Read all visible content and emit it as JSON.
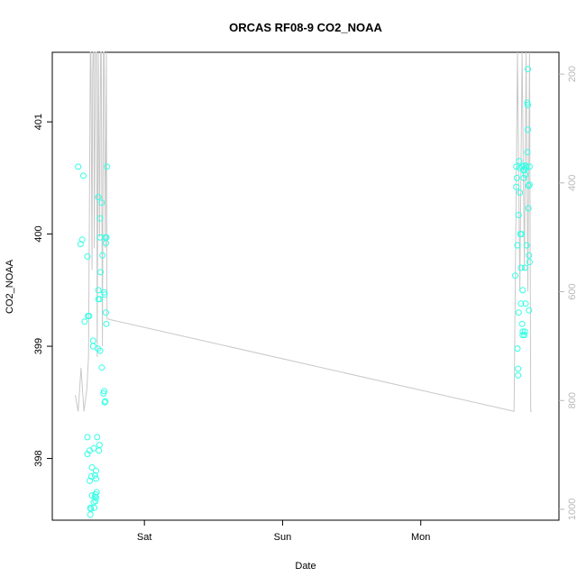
{
  "chart_data": {
    "type": "scatter",
    "title": "ORCAS RF08-9 CO2_NOAA",
    "xlabel": "Date",
    "ylabel": "CO2_NOAA",
    "x_ticks": [
      "Sat",
      "Sun",
      "Mon"
    ],
    "y_ticks": [
      398,
      399,
      400,
      401
    ],
    "y2_ticks": [
      200,
      400,
      600,
      800,
      1000
    ],
    "xlim_hours": [
      -16.0,
      72.0
    ],
    "ylim": [
      397.45,
      401.62
    ],
    "y2lim_reversed": [
      160,
      1020
    ],
    "grid": false,
    "colors": {
      "points": "#33ffe6",
      "line": "#c8c8c8",
      "right_axis": "#b8b8b8"
    },
    "series": [
      {
        "points": [
          [
            -11.5,
            400.6
          ],
          [
            -11.1,
            399.91
          ],
          [
            -10.8,
            399.95
          ],
          [
            -10.6,
            400.52
          ],
          [
            -10.4,
            399.22
          ],
          [
            -9.9,
            399.8
          ],
          [
            -9.8,
            399.27
          ],
          [
            -9.6,
            399.27
          ],
          [
            -9.9,
            398.04
          ],
          [
            -9.9,
            398.19
          ],
          [
            -9.5,
            398.07
          ],
          [
            -9.5,
            397.8
          ],
          [
            -9.4,
            397.56
          ],
          [
            -9.4,
            397.5
          ],
          [
            -9.3,
            397.55
          ],
          [
            -9.2,
            397.84
          ],
          [
            -9.1,
            397.67
          ],
          [
            -9.1,
            397.92
          ],
          [
            -8.9,
            399.05
          ],
          [
            -8.9,
            399.0
          ],
          [
            -8.8,
            398.09
          ],
          [
            -8.8,
            397.61
          ],
          [
            -8.7,
            397.56
          ],
          [
            -8.6,
            397.85
          ],
          [
            -8.6,
            397.66
          ],
          [
            -8.5,
            397.68
          ],
          [
            -8.5,
            397.62
          ],
          [
            -8.4,
            397.65
          ],
          [
            -8.4,
            397.89
          ],
          [
            -8.4,
            397.82
          ],
          [
            -8.3,
            397.7
          ],
          [
            -8.2,
            398.19
          ],
          [
            -8.0,
            400.33
          ],
          [
            -8.0,
            399.5
          ],
          [
            -7.9,
            398.07
          ],
          [
            -7.8,
            398.12
          ],
          [
            -7.7,
            400.14
          ],
          [
            -7.7,
            399.97
          ],
          [
            -7.6,
            399.66
          ],
          [
            -7.4,
            400.28
          ],
          [
            -7.3,
            399.81
          ],
          [
            -7.1,
            398.58
          ],
          [
            -7.0,
            398.6
          ],
          [
            -7.0,
            399.48
          ],
          [
            -6.9,
            399.46
          ],
          [
            -6.9,
            398.5
          ],
          [
            -6.8,
            398.51
          ],
          [
            -6.8,
            399.97
          ],
          [
            -6.7,
            399.92
          ],
          [
            -6.7,
            399.3
          ],
          [
            -6.6,
            399.2
          ],
          [
            -6.6,
            399.97
          ],
          [
            -6.5,
            400.6
          ]
        ]
      },
      {
        "points": [
          [
            -8.1,
            398.98
          ],
          [
            -8.0,
            399.42
          ],
          [
            -7.8,
            399.42
          ],
          [
            -7.7,
            398.96
          ],
          [
            -7.4,
            398.81
          ]
        ]
      },
      {
        "points": [
          [
            64.4,
            399.63
          ],
          [
            64.6,
            400.6
          ],
          [
            64.6,
            400.42
          ],
          [
            64.7,
            400.5
          ],
          [
            64.8,
            399.9
          ],
          [
            64.8,
            398.98
          ],
          [
            64.9,
            398.8
          ],
          [
            64.9,
            398.74
          ],
          [
            65.0,
            399.3
          ],
          [
            65.0,
            400.17
          ],
          [
            65.1,
            400.65
          ],
          [
            65.2,
            400.59
          ],
          [
            65.2,
            400.37
          ],
          [
            65.3,
            400.0
          ],
          [
            65.4,
            399.7
          ],
          [
            65.4,
            399.38
          ],
          [
            65.5,
            400.0
          ],
          [
            65.6,
            400.6
          ],
          [
            65.6,
            399.2
          ],
          [
            65.7,
            399.13
          ],
          [
            65.7,
            399.5
          ],
          [
            65.7,
            399.1
          ],
          [
            65.8,
            400.57
          ],
          [
            65.9,
            400.61
          ],
          [
            65.9,
            400.5
          ],
          [
            66.0,
            400.57
          ],
          [
            66.0,
            399.1
          ],
          [
            66.1,
            399.13
          ],
          [
            66.1,
            399.7
          ],
          [
            66.2,
            399.38
          ],
          [
            66.2,
            400.53
          ],
          [
            66.3,
            400.59
          ],
          [
            66.3,
            400.61
          ],
          [
            66.4,
            399.9
          ],
          [
            66.5,
            400.73
          ],
          [
            66.5,
            401.17
          ],
          [
            66.6,
            400.93
          ],
          [
            66.6,
            401.15
          ],
          [
            66.7,
            400.23
          ],
          [
            66.7,
            400.43
          ],
          [
            66.8,
            399.32
          ],
          [
            66.8,
            399.81
          ],
          [
            66.9,
            399.75
          ],
          [
            66.9,
            400.44
          ],
          [
            66.9,
            400.6
          ],
          [
            66.6,
            401.47
          ]
        ]
      }
    ],
    "secondary_line": {
      "x": [
        -12.0,
        -11.5,
        -11.0,
        -10.5,
        -10.0,
        -9.7,
        -9.4,
        -9.3,
        -9.1,
        -9.0,
        -8.9,
        -8.8,
        -8.7,
        -8.5,
        -8.3,
        -8.2,
        -8.0,
        -7.8,
        -7.6,
        -7.5,
        -7.3,
        -7.1,
        -7.0,
        -6.8,
        -6.6,
        -6.5,
        64.2,
        64.8,
        65.2,
        65.6,
        66.0,
        66.3,
        66.6,
        66.9,
        67.1,
        67.3
      ],
      "y": [
        790,
        820,
        740,
        820,
        780,
        720,
        160,
        160,
        560,
        200,
        160,
        160,
        520,
        160,
        160,
        720,
        160,
        500,
        160,
        160,
        700,
        160,
        160,
        520,
        160,
        650,
        820,
        160,
        600,
        160,
        560,
        160,
        600,
        160,
        820,
        820
      ]
    }
  }
}
